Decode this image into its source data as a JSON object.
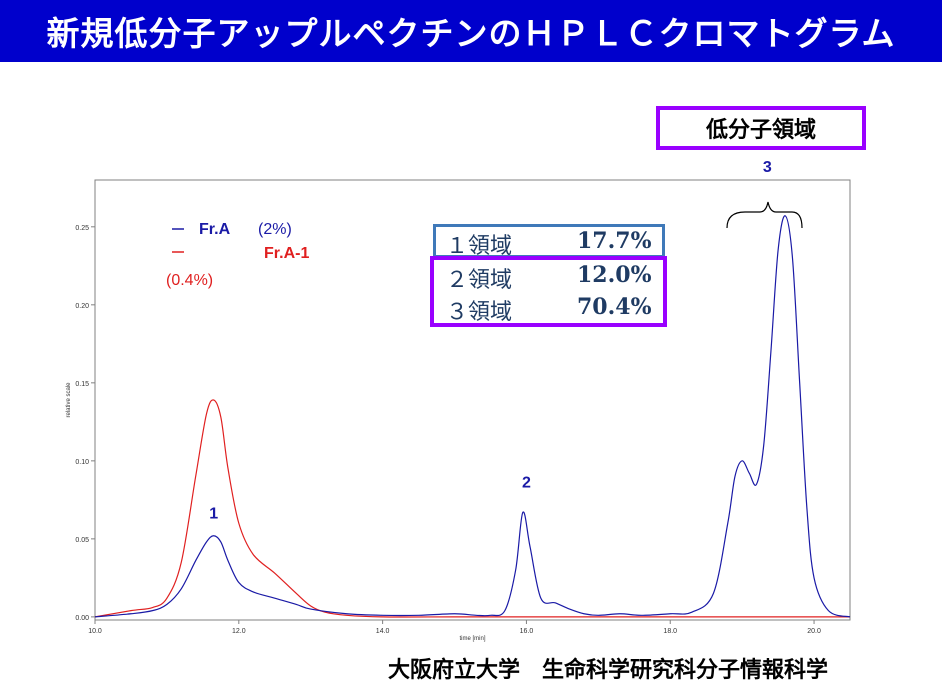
{
  "title": "新規低分子アップルペクチンのＨＰＬＣクロマトグラム",
  "region_label": "低分子領域",
  "footer": "大阪府立大学　生命科学研究科分子情報科学",
  "colors": {
    "title_bg": "#0000cc",
    "blue_series": "#1a1aa6",
    "red_series": "#e02020",
    "purple_box": "#9900ff",
    "steel_box": "#3f79b9"
  },
  "chart_data": {
    "type": "line",
    "xlabel": "time [min]",
    "ylabel": "relative scale",
    "xlim": [
      10.0,
      20.5
    ],
    "ylim": [
      -0.002,
      0.28
    ],
    "xticks": [
      "10.0",
      "12.0",
      "14.0",
      "16.0",
      "18.0",
      "20.0"
    ],
    "yticks": [
      "0.00",
      "0.05",
      "0.10",
      "0.15",
      "0.20",
      "0.25"
    ],
    "legend": [
      {
        "name": "Fr.A",
        "note": "(2%)"
      },
      {
        "name": "Fr.A-1",
        "note": "(0.4%)"
      }
    ],
    "peak_labels": [
      {
        "text": "1",
        "x": 11.65,
        "y": 0.063
      },
      {
        "text": "2",
        "x": 16.0,
        "y": 0.083
      },
      {
        "text": "3",
        "x": 19.35,
        "y": 0.285
      }
    ],
    "regions": [
      {
        "label": "１領域",
        "value": "17.7%"
      },
      {
        "label": "２領域",
        "value": "12.0%"
      },
      {
        "label": "３領域",
        "value": "70.4%"
      }
    ],
    "series": [
      {
        "name": "Fr.A",
        "x": [
          10.0,
          10.5,
          10.8,
          11.0,
          11.2,
          11.4,
          11.55,
          11.65,
          11.75,
          11.85,
          12.0,
          12.2,
          12.5,
          12.8,
          13.0,
          13.5,
          14.0,
          14.5,
          15.0,
          15.3,
          15.5,
          15.7,
          15.85,
          15.95,
          16.05,
          16.2,
          16.4,
          16.6,
          16.8,
          17.0,
          17.3,
          17.6,
          18.0,
          18.3,
          18.6,
          18.8,
          18.9,
          19.0,
          19.1,
          19.2,
          19.3,
          19.4,
          19.5,
          19.6,
          19.7,
          19.8,
          19.9,
          20.0,
          20.2,
          20.5
        ],
        "y": [
          0.0,
          0.002,
          0.004,
          0.008,
          0.018,
          0.036,
          0.048,
          0.052,
          0.048,
          0.036,
          0.022,
          0.016,
          0.012,
          0.008,
          0.005,
          0.002,
          0.001,
          0.001,
          0.002,
          0.001,
          0.001,
          0.004,
          0.03,
          0.067,
          0.045,
          0.012,
          0.009,
          0.005,
          0.002,
          0.001,
          0.002,
          0.001,
          0.002,
          0.003,
          0.015,
          0.06,
          0.09,
          0.1,
          0.092,
          0.085,
          0.11,
          0.17,
          0.235,
          0.257,
          0.23,
          0.15,
          0.07,
          0.025,
          0.004,
          0.0
        ]
      },
      {
        "name": "Fr.A-1",
        "x": [
          10.0,
          10.5,
          10.8,
          11.0,
          11.2,
          11.4,
          11.55,
          11.65,
          11.75,
          11.85,
          12.0,
          12.2,
          12.5,
          12.8,
          13.0,
          13.2,
          13.5,
          14.0,
          15.0,
          16.0,
          17.0,
          18.0,
          19.0,
          20.0,
          20.5
        ],
        "y": [
          0.0,
          0.004,
          0.006,
          0.012,
          0.035,
          0.09,
          0.13,
          0.139,
          0.128,
          0.095,
          0.06,
          0.04,
          0.028,
          0.015,
          0.007,
          0.003,
          0.001,
          0.0,
          0.0,
          0.0,
          0.0,
          0.0,
          0.0,
          0.0,
          0.0
        ]
      }
    ]
  }
}
